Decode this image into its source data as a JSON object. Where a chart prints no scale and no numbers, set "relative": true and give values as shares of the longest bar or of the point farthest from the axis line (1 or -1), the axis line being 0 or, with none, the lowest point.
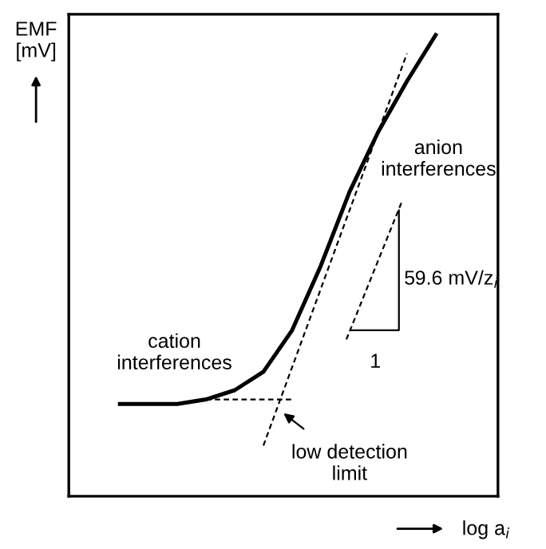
{
  "chart_data": {
    "type": "line",
    "relative": true,
    "xlabel": "log a$_{i}$",
    "ylabel": "EMF\n[mV]",
    "categories": [
      null,
      null,
      null,
      null,
      null,
      null,
      null,
      null,
      null,
      null,
      null,
      null
    ],
    "series": [
      {
        "color": "#000000",
        "values": [
          0.2,
          0.2,
          0.2,
          0.21,
          0.23,
          0.27,
          0.36,
          0.5,
          0.66,
          0.79,
          0.9,
          1.0
        ]
      },
      {
        "color": "#000000",
        "line_style": "dashed",
        "values": [
          null,
          null,
          null,
          null,
          null,
          0.11,
          0.28,
          0.45,
          0.62,
          0.79,
          0.96,
          null
        ]
      },
      {
        "color": "#000000",
        "line_style": "dashed",
        "values": [
          null,
          null,
          null,
          0.21,
          0.21,
          0.21,
          0.21,
          null,
          null,
          null,
          null,
          null
        ]
      }
    ],
    "annotations": [
      "cation\ninterferences",
      "anion\ninterferences",
      "59.6 mV/z$_{i}$",
      "1",
      "low detection\nlimit"
    ],
    "grid": false,
    "legend": false,
    "marker": "none"
  }
}
